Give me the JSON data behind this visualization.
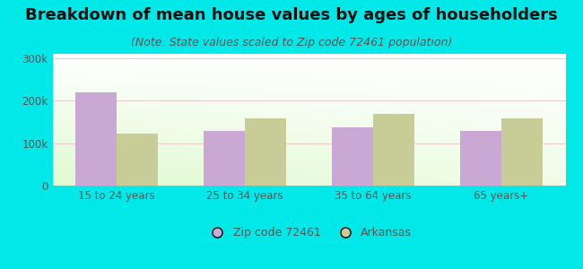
{
  "title": "Breakdown of mean house values by ages of householders",
  "subtitle": "(Note: State values scaled to Zip code 72461 population)",
  "categories": [
    "15 to 24 years",
    "25 to 34 years",
    "35 to 64 years",
    "65 years+"
  ],
  "zip_values": [
    220000,
    128000,
    138000,
    128000
  ],
  "state_values": [
    122000,
    158000,
    168000,
    158000
  ],
  "zip_color": "#c9a8d4",
  "state_color": "#c8cc96",
  "background_color": "#00e8e8",
  "ylim": [
    0,
    310000
  ],
  "yticks": [
    0,
    100000,
    200000,
    300000
  ],
  "ytick_labels": [
    "0",
    "100k",
    "200k",
    "300k"
  ],
  "legend_zip_label": "Zip code 72461",
  "legend_state_label": "Arkansas",
  "title_fontsize": 13,
  "subtitle_fontsize": 9,
  "bar_width": 0.32,
  "figsize": [
    6.5,
    3.0
  ],
  "dpi": 100
}
